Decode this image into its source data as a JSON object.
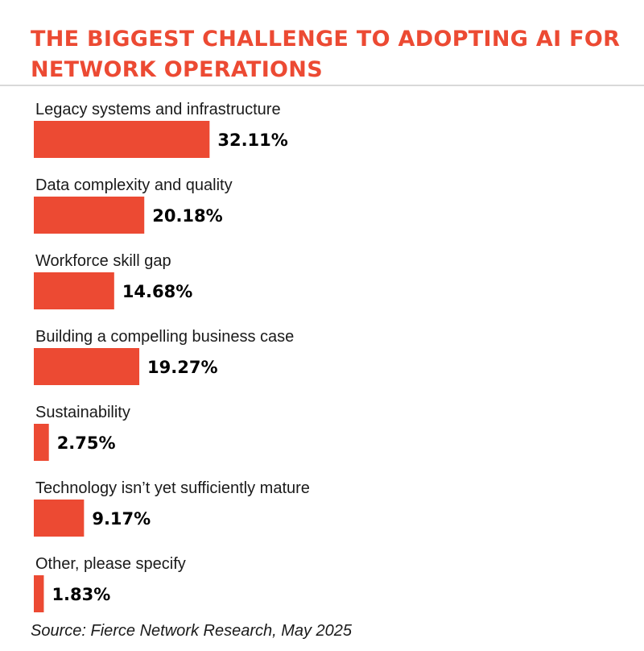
{
  "chart_data": {
    "type": "bar",
    "orientation": "horizontal",
    "title": "THE BIGGEST CHALLENGE TO ADOPTING AI FOR NETWORK OPERATIONS",
    "categories": [
      "Legacy systems and infrastructure",
      "Data complexity and quality",
      "Workforce skill gap",
      "Building a compelling business case",
      "Sustainability",
      "Technology isn’t yet sufficiently mature",
      "Other, please specify"
    ],
    "values": [
      32.11,
      20.18,
      14.68,
      19.27,
      2.75,
      9.17,
      1.83
    ],
    "value_labels": [
      "32.11%",
      "20.18%",
      "14.68%",
      "19.27%",
      "2.75%",
      "9.17%",
      "1.83%"
    ],
    "unit": "%",
    "bar_color": "#ec4a33",
    "grid": false,
    "legend": "none"
  },
  "source": "Source: Fierce Network Research, May 2025"
}
